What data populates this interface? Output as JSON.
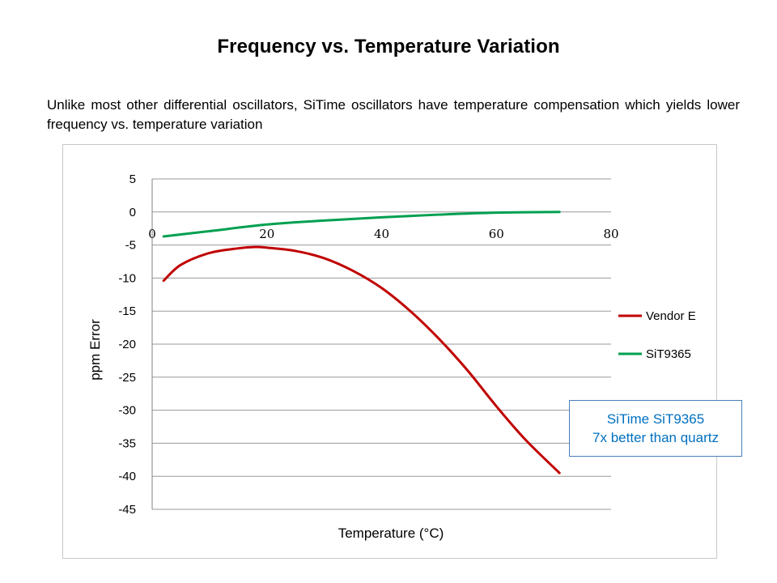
{
  "slide": {
    "title": "Frequency vs. Temperature Variation",
    "subtitle": "Unlike most other differential oscillators, SiTime oscillators have temperature compensation which yields lower frequency vs. temperature  variation"
  },
  "callout": {
    "line1": "SiTime SiT9365",
    "line2": "7x better than quartz"
  },
  "chart_data": {
    "type": "line",
    "title": "",
    "xlabel": "Temperature  (°C)",
    "ylabel": "ppm  Error",
    "xlim": [
      0,
      80
    ],
    "ylim": [
      -45,
      5
    ],
    "xticks": [
      0,
      20,
      40,
      60,
      80
    ],
    "yticks": [
      5,
      0,
      -5,
      -10,
      -15,
      -20,
      -25,
      -30,
      -35,
      -40,
      -45
    ],
    "grid": true,
    "legend_position": "right",
    "series": [
      {
        "name": "Vendor E",
        "color": "#c00000",
        "x": [
          2,
          5,
          10,
          15,
          18,
          20,
          25,
          30,
          35,
          40,
          45,
          50,
          55,
          60,
          65,
          71
        ],
        "y": [
          -10.4,
          -8.0,
          -6.2,
          -5.5,
          -5.3,
          -5.4,
          -5.9,
          -7.0,
          -8.9,
          -11.5,
          -15.0,
          -19.2,
          -24.0,
          -29.4,
          -34.4,
          -39.5
        ]
      },
      {
        "name": "SiT9365",
        "color": "#00a050",
        "x": [
          2,
          10,
          20,
          30,
          40,
          50,
          60,
          71
        ],
        "y": [
          -3.7,
          -2.9,
          -1.9,
          -1.3,
          -0.8,
          -0.4,
          -0.1,
          0.0
        ]
      }
    ]
  }
}
